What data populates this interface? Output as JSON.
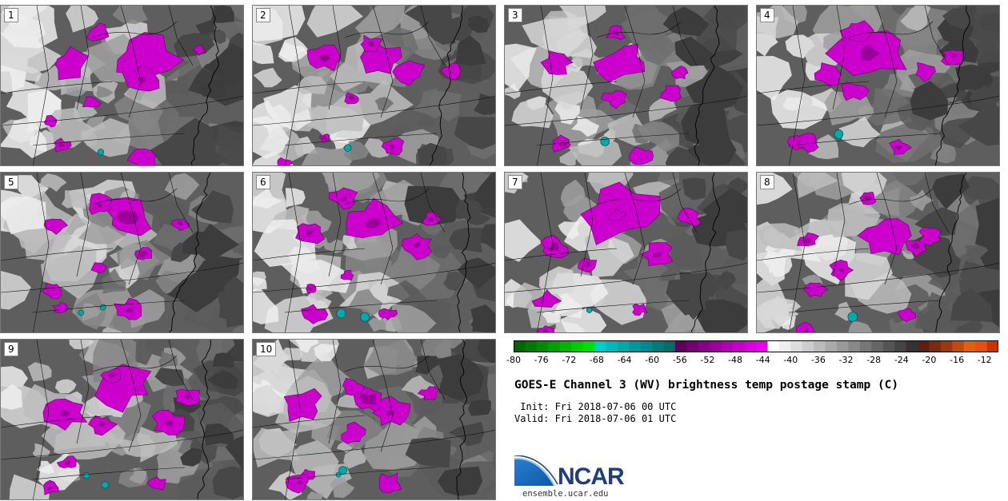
{
  "title": "GOES-E Channel 3 (WV) brightness temp postage stamp (C)",
  "init_line": " Init: Fri 2018-07-06 00 UTC",
  "valid_line": "Valid: Fri 2018-07-06 01 UTC",
  "panels": [
    {
      "label": "1",
      "seed": 11
    },
    {
      "label": "2",
      "seed": 23
    },
    {
      "label": "3",
      "seed": 37
    },
    {
      "label": "4",
      "seed": 41
    },
    {
      "label": "5",
      "seed": 53
    },
    {
      "label": "6",
      "seed": 67
    },
    {
      "label": "7",
      "seed": 71
    },
    {
      "label": "8",
      "seed": 83
    },
    {
      "label": "9",
      "seed": 97
    },
    {
      "label": "10",
      "seed": 101
    }
  ],
  "colorbar": {
    "min": -80,
    "max": -10,
    "step": 2,
    "tick_labels": [
      "-80",
      "-76",
      "-72",
      "-68",
      "-64",
      "-60",
      "-56",
      "-52",
      "-48",
      "-44",
      "-40",
      "-36",
      "-32",
      "-28",
      "-24",
      "-20",
      "-16",
      "-12"
    ],
    "tick_values": [
      -80,
      -76,
      -72,
      -68,
      -64,
      -60,
      -56,
      -52,
      -48,
      -44,
      -40,
      -36,
      -32,
      -28,
      -24,
      -20,
      -16,
      -12
    ],
    "colors": [
      "#006600",
      "#007a00",
      "#008c00",
      "#00a000",
      "#00b400",
      "#00cc00",
      "#00e000",
      "#00cccc",
      "#00b8b8",
      "#00a8a8",
      "#009999",
      "#008a8a",
      "#007a7a",
      "#006b6b",
      "#5c005c",
      "#720072",
      "#880088",
      "#9c009c",
      "#b000b0",
      "#c400c4",
      "#d800d8",
      "#ea00ea",
      "#ffffff",
      "#eeeeee",
      "#dddddd",
      "#cccccc",
      "#bbbbbb",
      "#aaaaaa",
      "#999999",
      "#888888",
      "#777777",
      "#666666",
      "#555555",
      "#444444",
      "#333333",
      "#5a2010",
      "#7a2a10",
      "#9a3810",
      "#c04a10",
      "#e06010",
      "#e85010",
      "#cc3300"
    ]
  },
  "palette": {
    "background_gray": "#5a5a5a",
    "magenta": "#cc00cc",
    "teal": "#00aaaa",
    "boundary": "#111111"
  },
  "logo": {
    "name": "NCAR",
    "url": "ensemble.ucar.edu"
  }
}
